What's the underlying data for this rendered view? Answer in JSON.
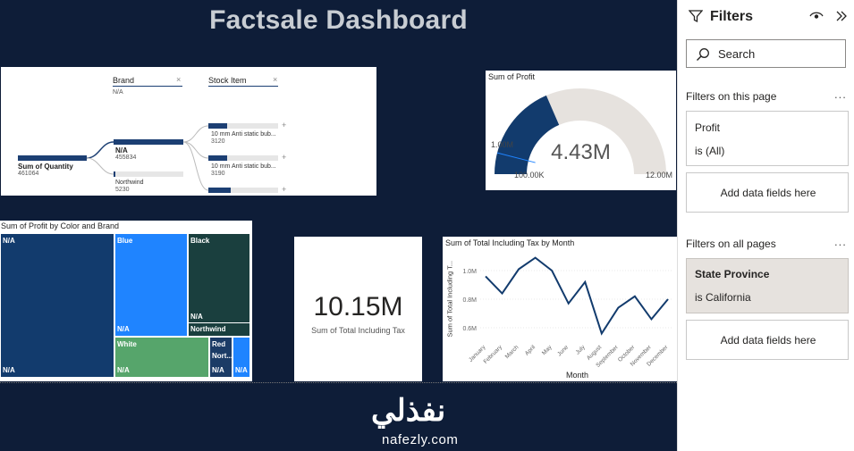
{
  "title": "Factsale Dashboard",
  "decomp": {
    "root_label": "Sum of Quantity",
    "root_value": "461064",
    "brand_header": "Brand",
    "brand_sub": "N/A",
    "stock_header": "Stock Item",
    "brands": [
      {
        "label": "N/A",
        "value": "455834",
        "fill": 1.0
      },
      {
        "label": "Northwind",
        "value": "5230",
        "fill": 0.02
      }
    ],
    "items": [
      {
        "label": "10 mm Anti static bub...",
        "value": "3120",
        "fill": 0.27
      },
      {
        "label": "10 mm Anti static bub...",
        "value": "3190",
        "fill": 0.27
      },
      {
        "label": "",
        "value": "",
        "fill": 0.32
      }
    ],
    "close_glyph": "×",
    "plus_glyph": "+"
  },
  "gauge": {
    "title": "Sum of Profit",
    "value": "4.43M",
    "min_label": "100.00K",
    "max_label": "12.00M",
    "target_label": "1.00M",
    "fill_fraction": 0.37
  },
  "treemap": {
    "title": "Sum of Profit by Color and Brand",
    "cells": [
      {
        "top": "N/A",
        "bottom": "N/A",
        "color": "#123b6d"
      },
      {
        "top": "Blue",
        "bottom": "N/A",
        "color": "#1f84ff"
      },
      {
        "top": "Black",
        "bottom": "N/A",
        "sub": "Northwind",
        "color": "#1a3f3e"
      },
      {
        "top": "White",
        "bottom": "N/A",
        "color": "#56a56b"
      },
      {
        "top": "Red",
        "mid": "Nort...",
        "bottom": "N/A",
        "color": "#1b3b66"
      },
      {
        "top": "",
        "bottom": "N/A",
        "color": "#1f84ff"
      }
    ]
  },
  "kpi": {
    "value": "10.15M",
    "label": "Sum of Total Including Tax"
  },
  "linechart": {
    "title": "Sum of Total Including Tax by Month",
    "xlabel": "Month",
    "ylabel": "Sum of Total Including T..."
  },
  "chart_data": {
    "type": "line",
    "title": "Sum of Total Including Tax by Month",
    "xlabel": "Month",
    "ylabel": "Sum of Total Including T...",
    "categories": [
      "January",
      "February",
      "March",
      "April",
      "May",
      "June",
      "July",
      "August",
      "September",
      "October",
      "November",
      "December"
    ],
    "y_ticks": [
      "1.0M",
      "0.8M",
      "0.6M"
    ],
    "ylim": [
      0.5,
      1.1
    ],
    "series": [
      {
        "values": [
          0.96,
          0.84,
          1.01,
          1.09,
          1.0,
          0.77,
          0.92,
          0.56,
          0.74,
          0.82,
          0.66,
          0.8
        ],
        "color": "#123b6d"
      }
    ]
  },
  "filters": {
    "header": "Filters",
    "search_placeholder": "Search",
    "page_section": "Filters on this page",
    "page_filter": {
      "name": "Profit",
      "value": "is (All)"
    },
    "add_fields": "Add data fields here",
    "all_section": "Filters on all pages",
    "all_filter": {
      "name": "State Province",
      "value": "is California"
    },
    "more_glyph": "...",
    "icons": [
      "filter-icon",
      "eye-icon",
      "collapse-icon",
      "search-icon"
    ]
  },
  "watermark": {
    "arabic": "نفذلي",
    "latin": "nafezly.com"
  }
}
